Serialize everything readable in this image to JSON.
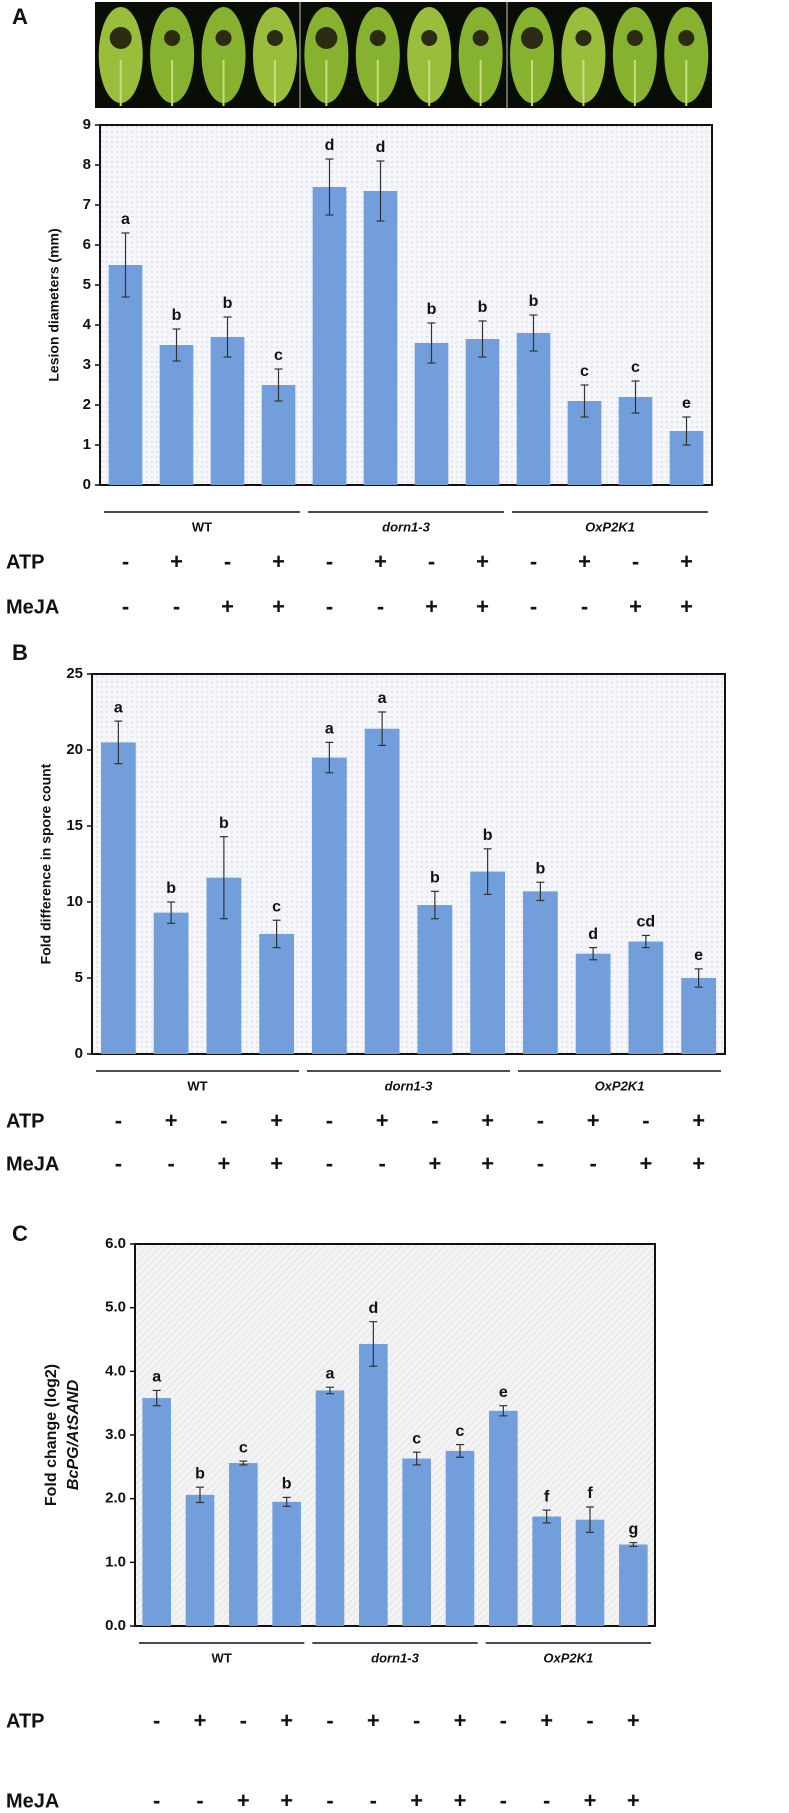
{
  "chart_data": [
    {
      "type": "bar",
      "panel_label": "A",
      "ylabel": "Lesion diameters (mm)",
      "color": "#729fdb",
      "values": [
        5.5,
        3.5,
        3.7,
        2.5,
        7.45,
        7.35,
        3.55,
        3.65,
        3.8,
        2.1,
        2.2,
        1.35
      ],
      "errors": [
        0.8,
        0.4,
        0.5,
        0.4,
        0.7,
        0.75,
        0.5,
        0.45,
        0.45,
        0.4,
        0.4,
        0.35
      ],
      "significance_labels": [
        "a",
        "b",
        "b",
        "c",
        "d",
        "d",
        "b",
        "b",
        "b",
        "c",
        "c",
        "e"
      ],
      "ylim": [
        0,
        9
      ],
      "yticks": [
        0,
        1,
        2,
        3,
        4,
        5,
        6,
        7,
        8,
        9
      ],
      "groups": [
        "WT",
        "dorn1-3",
        "OxP2K1"
      ],
      "treatments": [
        {
          "name": "ATP",
          "values": [
            "-",
            "+",
            "-",
            "+",
            "-",
            "+",
            "-",
            "+",
            "-",
            "+",
            "-",
            "+"
          ]
        },
        {
          "name": "MeJA",
          "values": [
            "-",
            "-",
            "+",
            "+",
            "-",
            "-",
            "+",
            "+",
            "-",
            "-",
            "+",
            "+"
          ]
        }
      ]
    },
    {
      "type": "bar",
      "panel_label": "B",
      "ylabel": "Fold difference in spore count",
      "color": "#729fdb",
      "values": [
        20.5,
        9.3,
        11.6,
        7.9,
        19.5,
        21.4,
        9.8,
        12,
        10.7,
        6.6,
        7.4,
        5
      ],
      "errors": [
        1.4,
        0.7,
        2.7,
        0.9,
        1.0,
        1.1,
        0.9,
        1.5,
        0.6,
        0.4,
        0.4,
        0.6
      ],
      "significance_labels": [
        "a",
        "b",
        "b",
        "c",
        "a",
        "a",
        "b",
        "b",
        "b",
        "d",
        "cd",
        "e"
      ],
      "ylim": [
        0,
        25
      ],
      "yticks": [
        0,
        5,
        10,
        15,
        20,
        25
      ],
      "groups": [
        "WT",
        "dorn1-3",
        "OxP2K1"
      ],
      "treatments": [
        {
          "name": "ATP",
          "values": [
            "-",
            "+",
            "-",
            "+",
            "-",
            "+",
            "-",
            "+",
            "-",
            "+",
            "-",
            "+"
          ]
        },
        {
          "name": "MeJA",
          "values": [
            "-",
            "-",
            "+",
            "+",
            "-",
            "-",
            "+",
            "+",
            "-",
            "-",
            "+",
            "+"
          ]
        }
      ]
    },
    {
      "type": "bar",
      "panel_label": "C",
      "ylabel": [
        "Fold change (log2)",
        "BcPG/AtSAND"
      ],
      "color": "#729fdb",
      "values": [
        3.58,
        2.06,
        2.56,
        1.95,
        3.7,
        4.43,
        2.63,
        2.75,
        3.38,
        1.72,
        1.67,
        1.28
      ],
      "errors": [
        0.12,
        0.12,
        0.03,
        0.07,
        0.05,
        0.35,
        0.1,
        0.1,
        0.08,
        0.1,
        0.2,
        0.03
      ],
      "significance_labels": [
        "a",
        "b",
        "c",
        "b",
        "a",
        "d",
        "c",
        "c",
        "e",
        "f",
        "f",
        "g"
      ],
      "ylim": [
        0,
        6
      ],
      "yticks": [
        {
          "value": 0,
          "label": "0.0"
        },
        {
          "value": 1,
          "label": "1.0"
        },
        {
          "value": 2,
          "label": "2.0"
        },
        {
          "value": 3,
          "label": "3.0"
        },
        {
          "value": 4,
          "label": "4.0"
        },
        {
          "value": 5,
          "label": "5.0"
        },
        {
          "value": 6,
          "label": "6.0"
        }
      ],
      "groups": [
        "WT",
        "dorn1-3",
        "OxP2K1"
      ],
      "treatments": [
        {
          "name": "ATP",
          "values": [
            "-",
            "+",
            "-",
            "+",
            "-",
            "+",
            "-",
            "+",
            "-",
            "+",
            "-",
            "+"
          ]
        },
        {
          "name": "MeJA",
          "values": [
            "-",
            "-",
            "+",
            "+",
            "-",
            "-",
            "+",
            "+",
            "-",
            "-",
            "+",
            "+"
          ]
        }
      ]
    }
  ]
}
